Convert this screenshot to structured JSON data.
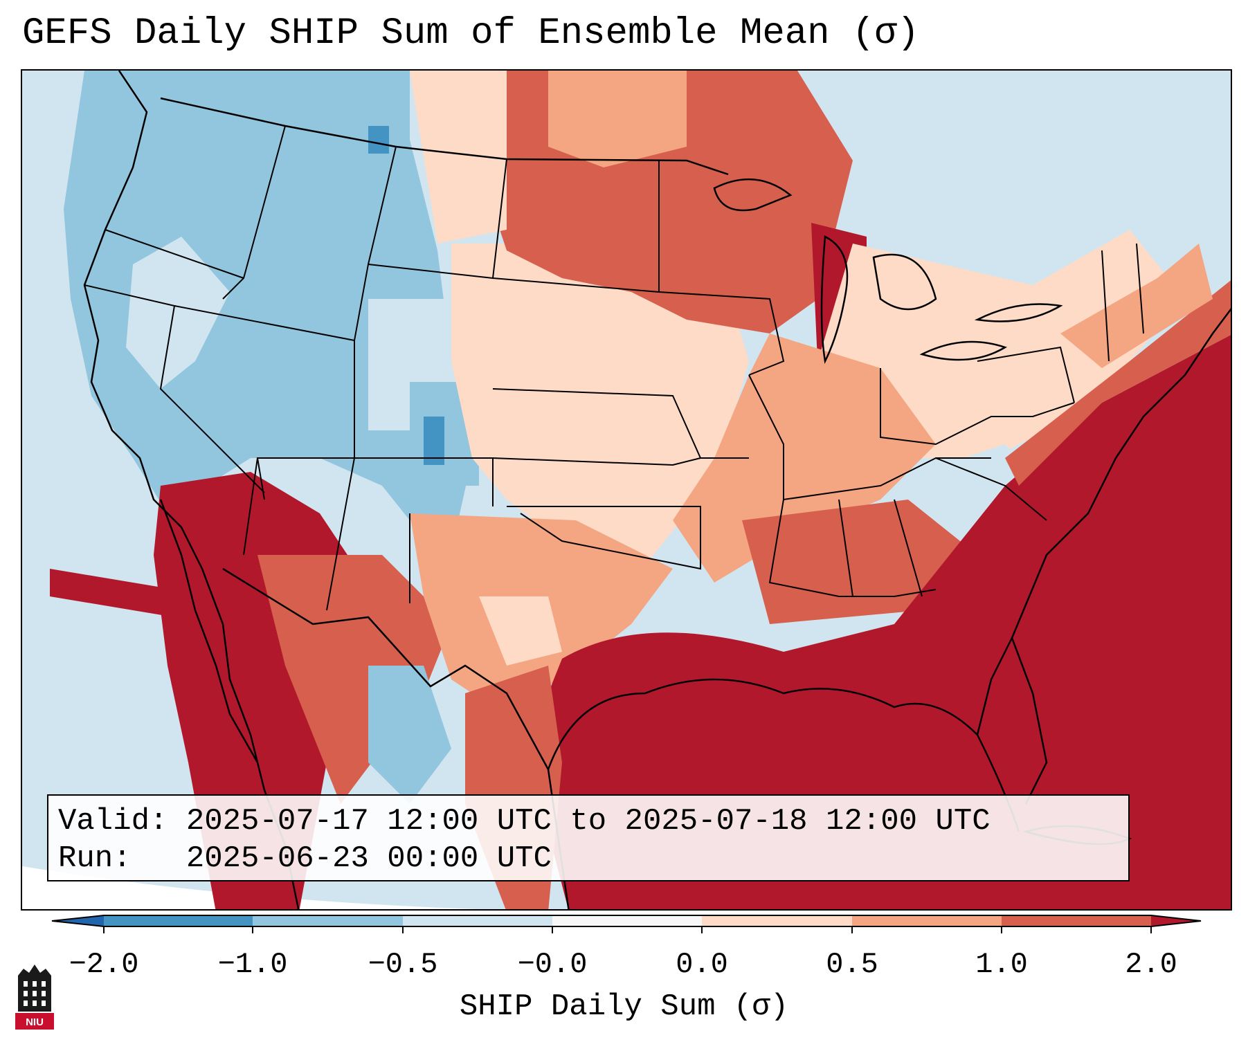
{
  "title": "GEFS Daily SHIP Sum of Ensemble Mean (σ)",
  "info": {
    "valid_label": "Valid:",
    "valid_value": "2025-07-17 12:00 UTC to 2025-07-18 12:00 UTC",
    "run_label": "Run:",
    "run_value": "2025-06-23 00:00 UTC"
  },
  "colorbar": {
    "label": "SHIP Daily Sum (σ)",
    "ticks": [
      "−2.0",
      "−1.0",
      "−0.5",
      "−0.0",
      "0.0",
      "0.5",
      "1.0",
      "2.0"
    ],
    "bins": [
      {
        "color": "#2166ac",
        "range": "< -2.0"
      },
      {
        "color": "#4393c3",
        "range": "-2.0 to -1.0"
      },
      {
        "color": "#92c5de",
        "range": "-1.0 to -0.5"
      },
      {
        "color": "#d1e5f0",
        "range": "-0.5 to -0.0"
      },
      {
        "color": "#f7f7f7",
        "range": "-0.0 to 0.0"
      },
      {
        "color": "#fddbc7",
        "range": "0.0 to 0.5"
      },
      {
        "color": "#f4a582",
        "range": "0.5 to 1.0"
      },
      {
        "color": "#d6604d",
        "range": "1.0 to 2.0"
      },
      {
        "color": "#b2182b",
        "range": "> 2.0"
      }
    ]
  },
  "logo": {
    "text": "NIU",
    "icon": "niu-tower-icon"
  }
}
